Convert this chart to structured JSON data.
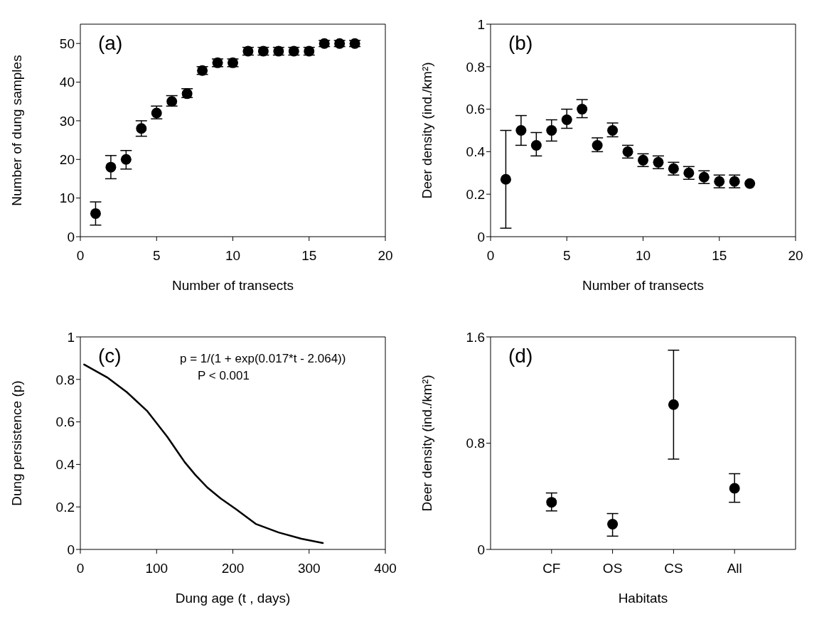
{
  "chart_data": [
    {
      "type": "scatter",
      "x": [
        1,
        2,
        3,
        4,
        5,
        6,
        7,
        8,
        9,
        10,
        11,
        12,
        13,
        14,
        15,
        16,
        17,
        18
      ],
      "color": "#000000",
      "marker": "circle",
      "values": [
        6,
        18,
        20,
        28,
        32,
        35,
        37,
        43,
        45,
        45,
        48,
        48,
        48,
        48,
        48,
        50,
        50,
        50
      ],
      "errors": [
        [
          3,
          9
        ],
        [
          15,
          21
        ],
        [
          17.5,
          22.3
        ],
        [
          26,
          30
        ],
        [
          30.5,
          33.8
        ],
        [
          33.8,
          36.5
        ],
        [
          36,
          38.3
        ],
        [
          42,
          44
        ],
        [
          44,
          46
        ],
        [
          44,
          46
        ],
        1,
        1,
        1,
        1,
        1,
        0.8,
        0.8,
        0.8
      ],
      "xlabel": "Number of transects",
      "ylabel": "Number of dung samples",
      "xlim": [
        0,
        20
      ],
      "xticks": [
        0,
        5,
        10,
        15,
        20
      ],
      "ylim": [
        0,
        55
      ],
      "yticks": [
        0,
        10,
        20,
        30,
        40,
        50
      ],
      "annotations": [
        "(a)"
      ],
      "grid": false,
      "legend": false
    },
    {
      "type": "scatter",
      "x": [
        1,
        2,
        3,
        4,
        5,
        6,
        7,
        8,
        9,
        10,
        11,
        12,
        13,
        14,
        15,
        16,
        17
      ],
      "color": "#000000",
      "marker": "circle",
      "values": [
        0.27,
        0.5,
        0.43,
        0.5,
        0.55,
        0.6,
        0.43,
        0.5,
        0.4,
        0.36,
        0.35,
        0.32,
        0.3,
        0.28,
        0.26,
        0.26,
        0.25
      ],
      "errors": [
        [
          0.04,
          0.5
        ],
        [
          0.43,
          0.57
        ],
        [
          0.38,
          0.49
        ],
        [
          0.45,
          0.55
        ],
        [
          0.51,
          0.6
        ],
        [
          0.56,
          0.645
        ],
        [
          0.4,
          0.465
        ],
        [
          0.47,
          0.535
        ],
        [
          0.37,
          0.43
        ],
        0.03,
        0.03,
        0.03,
        0.03,
        0.03,
        0.03,
        0.03,
        null
      ],
      "xlabel": "Number of transects",
      "ylabel": "Deer density (ind./km²)",
      "xlim": [
        0,
        20
      ],
      "xticks": [
        0,
        5,
        10,
        15,
        20
      ],
      "ylim": [
        0,
        1
      ],
      "yticks": [
        0,
        0.2,
        0.4,
        0.6,
        0.8,
        1
      ],
      "annotations": [
        "(b)"
      ],
      "grid": false,
      "legend": false
    },
    {
      "type": "line",
      "x": [
        5,
        35,
        61,
        88,
        114,
        137,
        151,
        167,
        184,
        204,
        230,
        260,
        290,
        318
      ],
      "color": "#000000",
      "marker": "none",
      "line_style": "solid",
      "values": [
        0.87,
        0.81,
        0.74,
        0.65,
        0.53,
        0.41,
        0.35,
        0.29,
        0.24,
        0.19,
        0.12,
        0.08,
        0.05,
        0.03
      ],
      "xlabel": "Dung age (t , days)",
      "ylabel": "Dung persistence (p)",
      "xlim": [
        0,
        400
      ],
      "xticks": [
        0,
        100,
        200,
        300,
        400
      ],
      "ylim": [
        0,
        1
      ],
      "yticks": [
        0,
        0.2,
        0.4,
        0.6,
        0.8,
        1
      ],
      "annotations": [
        "(c)",
        "p = 1/(1 + exp(0.017*t - 2.064))",
        "P < 0.001"
      ],
      "grid": false,
      "legend": false
    },
    {
      "type": "scatter",
      "categories": [
        "CF",
        "OS",
        "CS",
        "All"
      ],
      "color": "#000000",
      "marker": "circle",
      "values": [
        0.355,
        0.19,
        1.09,
        0.46
      ],
      "errors": [
        [
          0.29,
          0.425
        ],
        [
          0.1,
          0.27
        ],
        [
          0.68,
          1.5
        ],
        [
          0.355,
          0.57
        ]
      ],
      "xlabel": "Habitats",
      "ylabel": "Deer density (ind./km²)",
      "ylim": [
        0,
        1.6
      ],
      "yticks": [
        0,
        0.8,
        1.6
      ],
      "annotations": [
        "(d)"
      ],
      "grid": false,
      "legend": false
    }
  ]
}
